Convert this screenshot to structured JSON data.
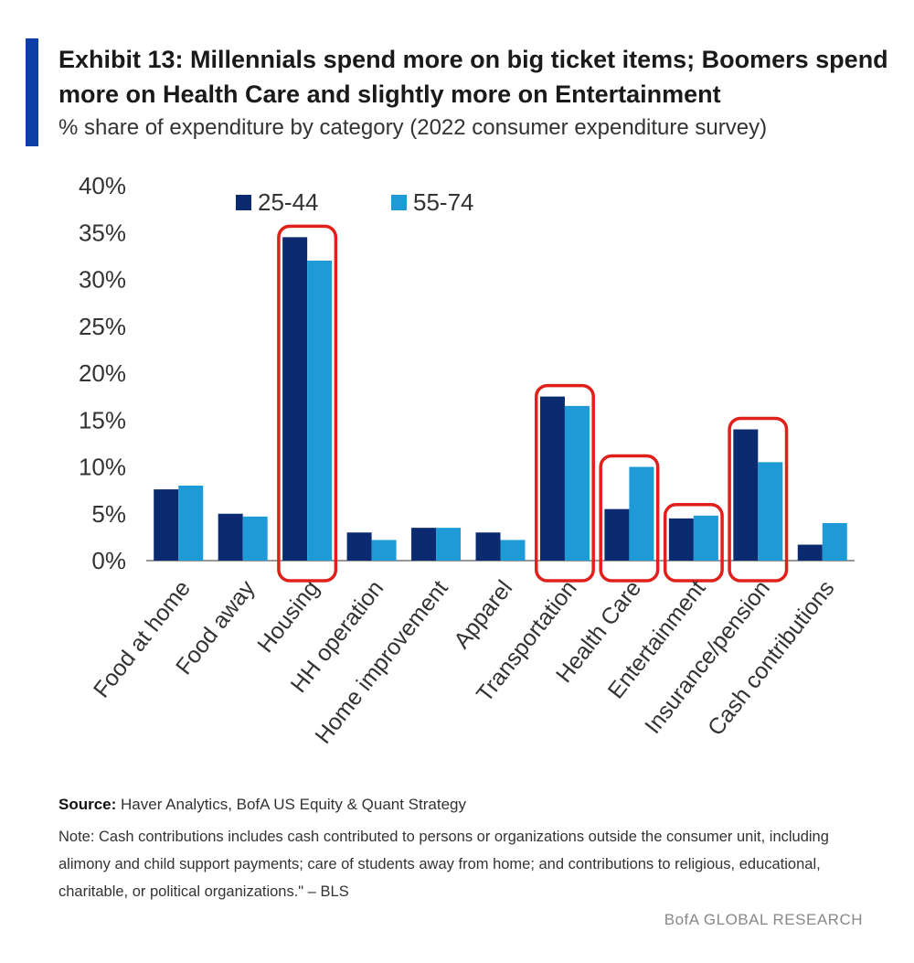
{
  "header": {
    "title": "Exhibit 13: Millennials spend more on big ticket items; Boomers spend more on Health Care and slightly more on Entertainment",
    "subtitle": "% share of expenditure by category (2022 consumer expenditure survey)"
  },
  "footer": {
    "source_label": "Source:",
    "source_text": "Haver Analytics, BofA US Equity & Quant Strategy",
    "note": "Note: Cash contributions includes cash contributed to persons or organizations outside the consumer unit, including alimony and child support payments; care of students away from home; and contributions to religious, educational, charitable, or political organizations.\" – BLS",
    "brand": "BofA GLOBAL RESEARCH"
  },
  "chart_data": {
    "type": "bar",
    "categories": [
      "Food at home",
      "Food away",
      "Housing",
      "HH operation",
      "Home improvement",
      "Apparel",
      "Transportation",
      "Health Care",
      "Entertainment",
      "Insurance/pension",
      "Cash contributions"
    ],
    "series": [
      {
        "name": "25-44",
        "color": "#0b2a6f",
        "values": [
          7.6,
          5.0,
          34.5,
          3.0,
          3.5,
          3.0,
          17.5,
          5.5,
          4.5,
          14.0,
          1.7
        ]
      },
      {
        "name": "55-74",
        "color": "#1e9ad6",
        "values": [
          8.0,
          4.7,
          32.0,
          2.2,
          3.5,
          2.2,
          16.5,
          10.0,
          4.8,
          10.5,
          4.0
        ]
      }
    ],
    "ylim": [
      0,
      40
    ],
    "yticks": [
      0,
      5,
      10,
      15,
      20,
      25,
      30,
      35,
      40
    ],
    "ytick_labels": [
      "0%",
      "5%",
      "10%",
      "15%",
      "20%",
      "25%",
      "30%",
      "35%",
      "40%"
    ],
    "highlighted_categories": [
      "Housing",
      "Transportation",
      "Health Care",
      "Entertainment",
      "Insurance/pension"
    ],
    "highlight_color": "#e0201b",
    "legend_position": "top",
    "grid": false
  }
}
